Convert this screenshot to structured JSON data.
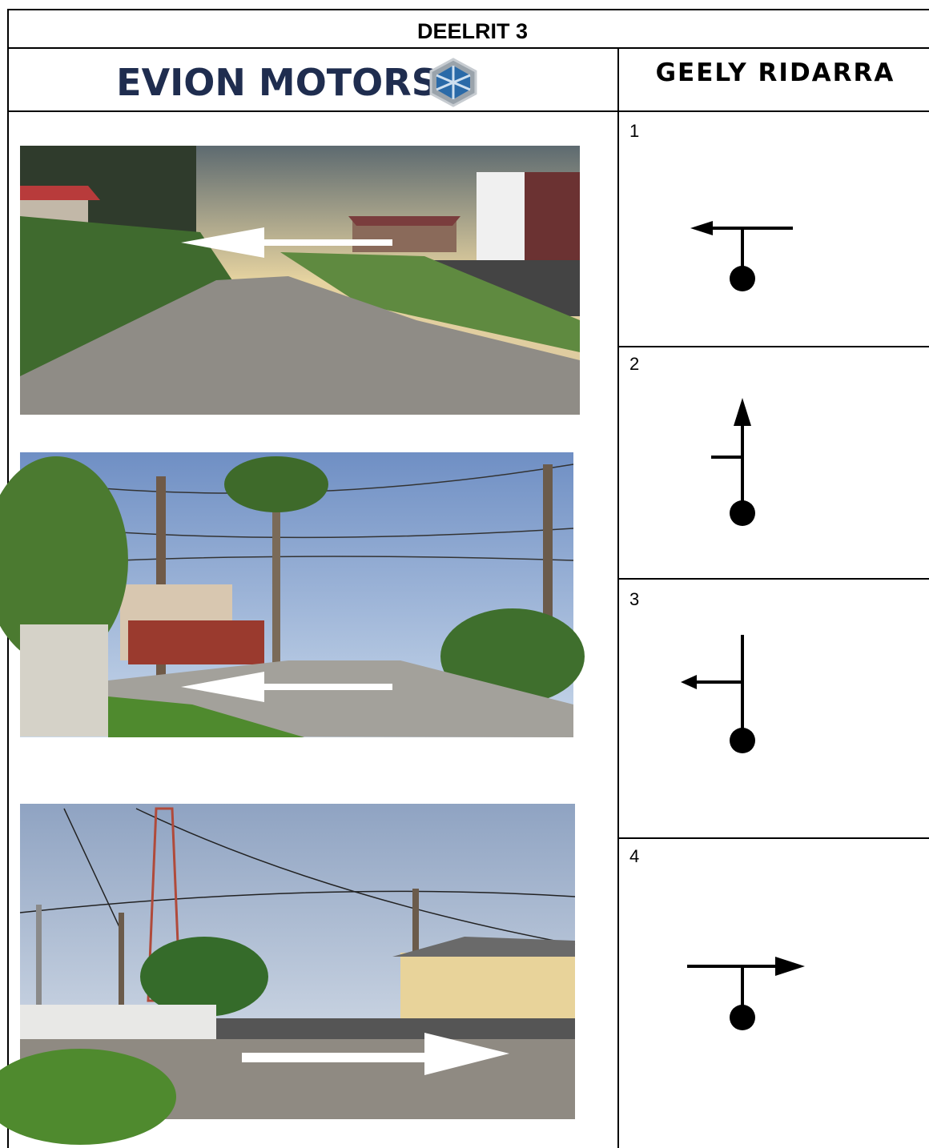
{
  "header": {
    "title": "DEELRIT 3"
  },
  "columns": {
    "left": "EVION MOTORS",
    "right": "GEELY RIDARRA"
  },
  "steps": [
    {
      "number": "1"
    },
    {
      "number": "2"
    },
    {
      "number": "3"
    },
    {
      "number": "4"
    }
  ]
}
